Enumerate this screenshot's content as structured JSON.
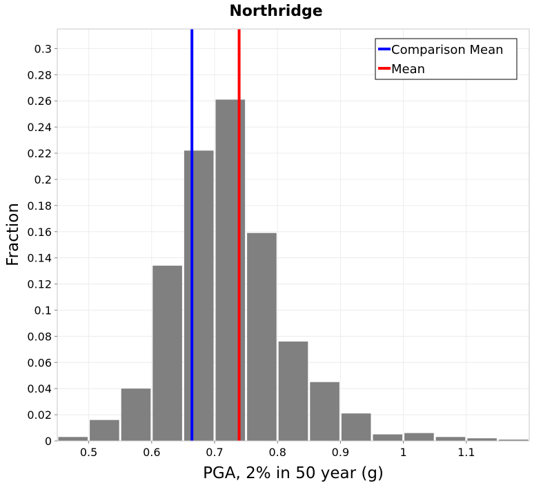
{
  "chart_data": {
    "type": "bar",
    "title": "Northridge",
    "xlabel": "PGA, 2% in 50 year (g)",
    "ylabel": "Fraction",
    "xlim": [
      0.45,
      1.2
    ],
    "ylim": [
      0,
      0.315
    ],
    "xticks": [
      0.5,
      0.6,
      0.7,
      0.8,
      0.9,
      1.0,
      1.1
    ],
    "xtick_labels": [
      "0.5",
      "0.6",
      "0.7",
      "0.8",
      "0.9",
      "1",
      "1.1"
    ],
    "yticks": [
      0,
      0.02,
      0.04,
      0.06,
      0.08,
      0.1,
      0.12,
      0.14,
      0.16,
      0.18,
      0.2,
      0.22,
      0.24,
      0.26,
      0.28,
      0.3
    ],
    "ytick_labels": [
      "0",
      "0.02",
      "0.04",
      "0.06",
      "0.08",
      "0.1",
      "0.12",
      "0.14",
      "0.16",
      "0.18",
      "0.2",
      "0.22",
      "0.24",
      "0.26",
      "0.28",
      "0.3"
    ],
    "bin_width": 0.05,
    "bins": [
      {
        "center": 0.475,
        "value": 0.003
      },
      {
        "center": 0.525,
        "value": 0.016
      },
      {
        "center": 0.575,
        "value": 0.04
      },
      {
        "center": 0.625,
        "value": 0.134
      },
      {
        "center": 0.675,
        "value": 0.222
      },
      {
        "center": 0.725,
        "value": 0.261
      },
      {
        "center": 0.775,
        "value": 0.159
      },
      {
        "center": 0.825,
        "value": 0.076
      },
      {
        "center": 0.875,
        "value": 0.045
      },
      {
        "center": 0.925,
        "value": 0.021
      },
      {
        "center": 0.975,
        "value": 0.005
      },
      {
        "center": 1.025,
        "value": 0.006
      },
      {
        "center": 1.075,
        "value": 0.003
      },
      {
        "center": 1.125,
        "value": 0.002
      },
      {
        "center": 1.175,
        "value": 0.001
      }
    ],
    "bar_color": "#808080",
    "vlines": [
      {
        "name": "Comparison Mean",
        "x": 0.664,
        "color": "#0000ff"
      },
      {
        "name": "Mean",
        "x": 0.739,
        "color": "#ff0000"
      }
    ],
    "legend": {
      "position": "top-right",
      "entries": [
        {
          "label": "Comparison Mean",
          "color": "#0000ff"
        },
        {
          "label": "Mean",
          "color": "#ff0000"
        }
      ]
    },
    "grid": true
  }
}
